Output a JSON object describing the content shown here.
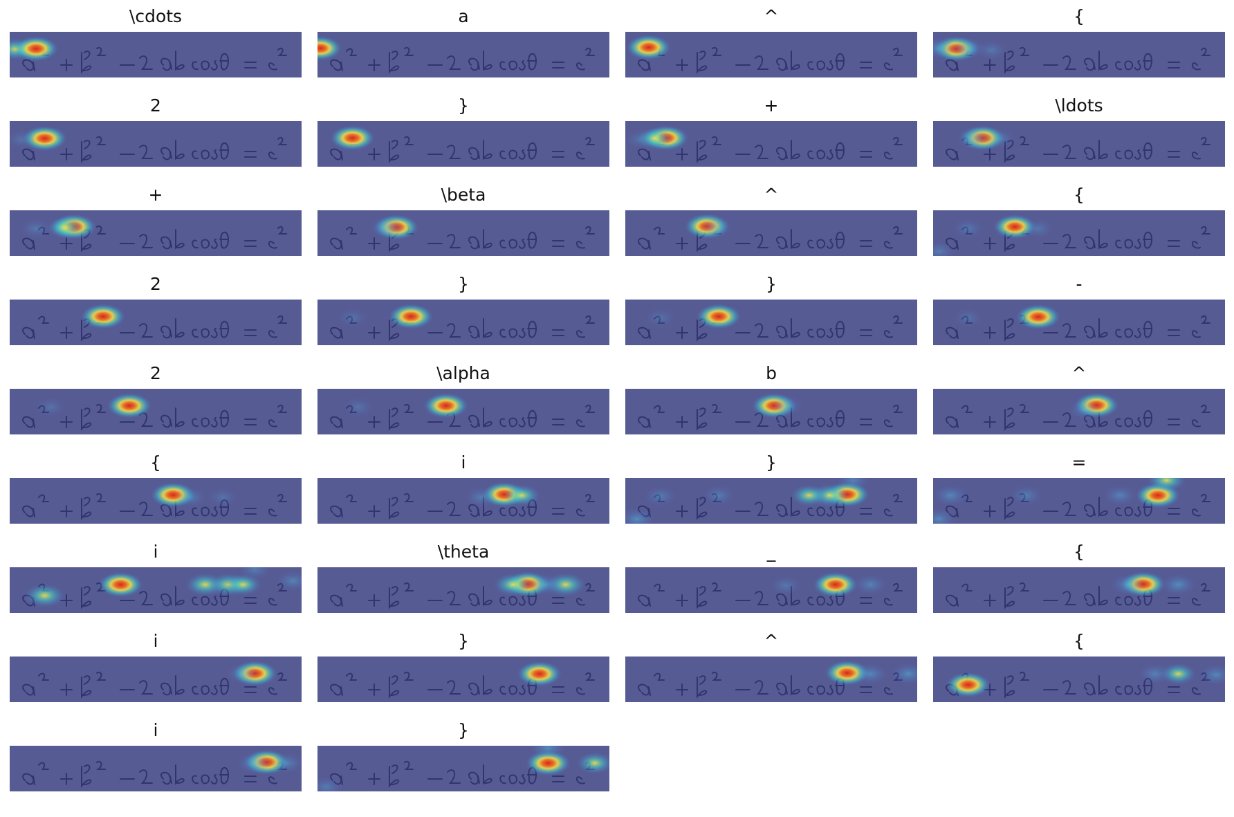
{
  "figure": {
    "panels": [
      {
        "title": "\\cdots",
        "peaks": [
          [
            0.02,
            0.38,
            0.6
          ],
          [
            0.09,
            0.37,
            1.0
          ]
        ]
      },
      {
        "title": "a",
        "peaks": [
          [
            0.01,
            0.36,
            0.9
          ]
        ]
      },
      {
        "title": "^",
        "peaks": [
          [
            0.08,
            0.34,
            1.0
          ]
        ]
      },
      {
        "title": "{",
        "peaks": [
          [
            0.08,
            0.37,
            1.0
          ],
          [
            0.02,
            0.36,
            0.5
          ],
          [
            0.12,
            0.37,
            0.5
          ],
          [
            0.2,
            0.4,
            0.3
          ]
        ]
      },
      {
        "title": "2",
        "peaks": [
          [
            0.12,
            0.38,
            1.0
          ],
          [
            0.04,
            0.4,
            0.25
          ]
        ]
      },
      {
        "title": "}",
        "peaks": [
          [
            0.12,
            0.37,
            1.0
          ]
        ]
      },
      {
        "title": "+",
        "peaks": [
          [
            0.14,
            0.37,
            1.0
          ],
          [
            0.1,
            0.38,
            0.6
          ],
          [
            0.05,
            0.4,
            0.25
          ]
        ]
      },
      {
        "title": "\\ldots",
        "peaks": [
          [
            0.17,
            0.37,
            1.0
          ],
          [
            0.14,
            0.38,
            0.5
          ],
          [
            0.23,
            0.38,
            0.3
          ]
        ]
      },
      {
        "title": "+",
        "peaks": [
          [
            0.22,
            0.36,
            1.0
          ],
          [
            0.19,
            0.38,
            0.6
          ],
          [
            0.09,
            0.4,
            0.3
          ]
        ]
      },
      {
        "title": "\\beta",
        "peaks": [
          [
            0.27,
            0.37,
            1.0
          ],
          [
            0.24,
            0.38,
            0.5
          ]
        ]
      },
      {
        "title": "^",
        "peaks": [
          [
            0.28,
            0.35,
            1.0
          ],
          [
            0.31,
            0.37,
            0.4
          ]
        ]
      },
      {
        "title": "{",
        "peaks": [
          [
            0.28,
            0.36,
            0.9
          ],
          [
            0.02,
            0.9,
            0.35
          ],
          [
            0.12,
            0.4,
            0.3
          ],
          [
            0.36,
            0.4,
            0.3
          ]
        ]
      },
      {
        "title": "2",
        "peaks": [
          [
            0.32,
            0.37,
            1.0
          ]
        ]
      },
      {
        "title": "}",
        "peaks": [
          [
            0.32,
            0.37,
            1.0
          ],
          [
            0.12,
            0.4,
            0.25
          ]
        ]
      },
      {
        "title": "}",
        "peaks": [
          [
            0.32,
            0.37,
            1.0
          ],
          [
            0.12,
            0.4,
            0.25
          ]
        ]
      },
      {
        "title": "-",
        "peaks": [
          [
            0.36,
            0.38,
            1.0
          ],
          [
            0.12,
            0.4,
            0.25
          ]
        ]
      },
      {
        "title": "2",
        "peaks": [
          [
            0.41,
            0.37,
            1.0
          ],
          [
            0.14,
            0.4,
            0.25
          ]
        ]
      },
      {
        "title": "\\alpha",
        "peaks": [
          [
            0.44,
            0.37,
            1.0
          ],
          [
            0.14,
            0.4,
            0.25
          ]
        ]
      },
      {
        "title": "b",
        "peaks": [
          [
            0.51,
            0.37,
            1.0
          ],
          [
            0.55,
            0.38,
            0.4
          ]
        ]
      },
      {
        "title": "^",
        "peaks": [
          [
            0.56,
            0.36,
            1.0
          ],
          [
            0.52,
            0.45,
            0.4
          ]
        ]
      },
      {
        "title": "{",
        "peaks": [
          [
            0.56,
            0.37,
            1.0
          ],
          [
            0.62,
            0.42,
            0.35
          ],
          [
            0.73,
            0.42,
            0.25
          ]
        ]
      },
      {
        "title": "i",
        "peaks": [
          [
            0.64,
            0.36,
            1.0
          ],
          [
            0.7,
            0.38,
            0.6
          ],
          [
            0.56,
            0.42,
            0.35
          ]
        ]
      },
      {
        "title": "}",
        "peaks": [
          [
            0.76,
            0.36,
            1.0
          ],
          [
            0.7,
            0.38,
            0.7
          ],
          [
            0.63,
            0.38,
            0.6
          ],
          [
            0.04,
            0.9,
            0.5
          ],
          [
            0.12,
            0.4,
            0.35
          ],
          [
            0.32,
            0.38,
            0.35
          ],
          [
            0.78,
            0.05,
            0.4
          ]
        ]
      },
      {
        "title": "=",
        "peaks": [
          [
            0.77,
            0.38,
            1.0
          ],
          [
            0.8,
            0.05,
            0.7
          ],
          [
            0.06,
            0.38,
            0.45
          ],
          [
            0.32,
            0.38,
            0.35
          ],
          [
            0.64,
            0.38,
            0.4
          ],
          [
            0.02,
            0.9,
            0.45
          ]
        ]
      },
      {
        "title": "i",
        "peaks": [
          [
            0.38,
            0.38,
            1.0
          ],
          [
            0.12,
            0.62,
            0.8
          ],
          [
            0.67,
            0.38,
            0.75
          ],
          [
            0.75,
            0.38,
            0.75
          ],
          [
            0.8,
            0.38,
            0.6
          ],
          [
            0.84,
            0.05,
            0.35
          ],
          [
            0.97,
            0.3,
            0.4
          ]
        ]
      },
      {
        "title": "\\theta",
        "peaks": [
          [
            0.72,
            0.37,
            1.0
          ],
          [
            0.67,
            0.38,
            0.7
          ],
          [
            0.85,
            0.38,
            0.8
          ],
          [
            0.78,
            0.38,
            0.5
          ]
        ]
      },
      {
        "title": "_",
        "peaks": [
          [
            0.72,
            0.38,
            1.0
          ],
          [
            0.84,
            0.38,
            0.4
          ],
          [
            0.55,
            0.4,
            0.3
          ]
        ]
      },
      {
        "title": "{",
        "peaks": [
          [
            0.72,
            0.37,
            1.0
          ],
          [
            0.67,
            0.38,
            0.5
          ],
          [
            0.84,
            0.38,
            0.5
          ]
        ]
      },
      {
        "title": "i",
        "peaks": [
          [
            0.84,
            0.37,
            1.0
          ],
          [
            0.8,
            0.38,
            0.4
          ]
        ]
      },
      {
        "title": "}",
        "peaks": [
          [
            0.76,
            0.38,
            1.0
          ]
        ]
      },
      {
        "title": "^",
        "peaks": [
          [
            0.76,
            0.36,
            1.0
          ],
          [
            0.84,
            0.38,
            0.45
          ],
          [
            0.97,
            0.38,
            0.5
          ]
        ]
      },
      {
        "title": "{",
        "peaks": [
          [
            0.12,
            0.62,
            1.0
          ],
          [
            0.84,
            0.38,
            0.55
          ],
          [
            0.76,
            0.38,
            0.4
          ],
          [
            0.97,
            0.4,
            0.45
          ]
        ]
      },
      {
        "title": "i",
        "peaks": [
          [
            0.88,
            0.36,
            1.0
          ],
          [
            0.84,
            0.38,
            0.5
          ],
          [
            0.95,
            0.38,
            0.4
          ]
        ]
      },
      {
        "title": "}",
        "peaks": [
          [
            0.79,
            0.38,
            1.0
          ],
          [
            0.79,
            0.05,
            0.5
          ],
          [
            0.95,
            0.38,
            0.6
          ],
          [
            0.03,
            0.9,
            0.35
          ]
        ]
      }
    ]
  }
}
